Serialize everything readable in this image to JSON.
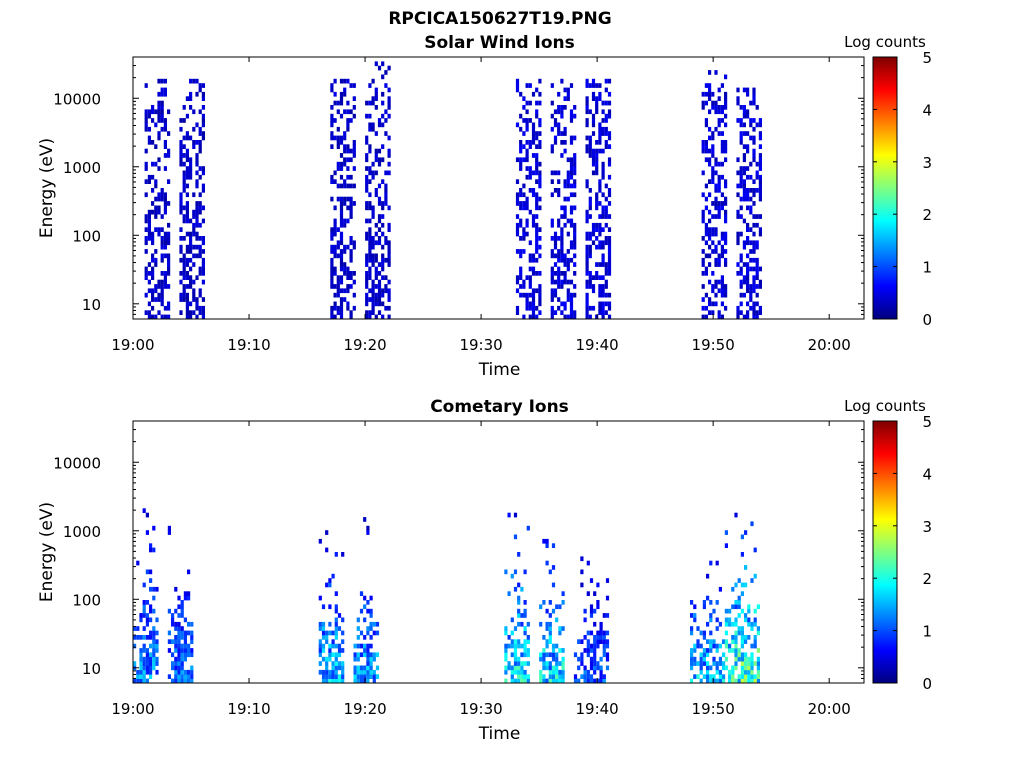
{
  "figure_title": "RPCICA150627T19.PNG",
  "colormap_stops": [
    "#00007f",
    "#0000ff",
    "#007fff",
    "#00ffff",
    "#7fff7f",
    "#ffff00",
    "#ff7f00",
    "#ff0000",
    "#7f0000"
  ],
  "chart_data": [
    {
      "type": "heatmap",
      "title": "Solar Wind Ions",
      "xlabel": "Time",
      "ylabel": "Energy (eV)",
      "xlim": [
        "19:00",
        "20:03"
      ],
      "ylim": [
        6,
        40000
      ],
      "yscale": "log",
      "xticks": [
        "19:00",
        "19:10",
        "19:20",
        "19:30",
        "19:40",
        "19:50",
        "20:00"
      ],
      "yticks": [
        10,
        100,
        1000,
        10000
      ],
      "ytick_labels": [
        "10",
        "100",
        "1000",
        "10000"
      ],
      "colorbar": {
        "label": "Log counts",
        "range": [
          0,
          5
        ],
        "ticks": [
          "0",
          "1",
          "2",
          "3",
          "4",
          "5"
        ]
      },
      "grid": false,
      "bursts": [
        {
          "t_start": "19:01",
          "t_end": "19:03",
          "e_min": 6,
          "e_max": 20000,
          "log_counts_typical": 0.5
        },
        {
          "t_start": "19:04",
          "t_end": "19:06",
          "e_min": 6,
          "e_max": 20000,
          "log_counts_typical": 0.5
        },
        {
          "t_start": "19:17",
          "t_end": "19:19",
          "e_min": 6,
          "e_max": 20000,
          "log_counts_typical": 0.5
        },
        {
          "t_start": "19:20",
          "t_end": "19:22",
          "e_min": 6,
          "e_max": 35000,
          "log_counts_typical": 0.5
        },
        {
          "t_start": "19:33",
          "t_end": "19:35",
          "e_min": 6,
          "e_max": 20000,
          "log_counts_typical": 0.6
        },
        {
          "t_start": "19:36",
          "t_end": "19:38",
          "e_min": 6,
          "e_max": 20000,
          "log_counts_typical": 0.6
        },
        {
          "t_start": "19:39",
          "t_end": "19:41",
          "e_min": 6,
          "e_max": 20000,
          "log_counts_typical": 0.6
        },
        {
          "t_start": "19:49",
          "t_end": "19:51",
          "e_min": 6,
          "e_max": 25000,
          "log_counts_typical": 0.6
        },
        {
          "t_start": "19:52",
          "t_end": "19:54",
          "e_min": 6,
          "e_max": 15000,
          "log_counts_typical": 0.6
        }
      ]
    },
    {
      "type": "heatmap",
      "title": "Cometary Ions",
      "xlabel": "Time",
      "ylabel": "Energy (eV)",
      "xlim": [
        "19:00",
        "20:03"
      ],
      "ylim": [
        6,
        40000
      ],
      "yscale": "log",
      "xticks": [
        "19:00",
        "19:10",
        "19:20",
        "19:30",
        "19:40",
        "19:50",
        "20:00"
      ],
      "yticks": [
        10,
        100,
        1000,
        10000
      ],
      "ytick_labels": [
        "10",
        "100",
        "1000",
        "10000"
      ],
      "colorbar": {
        "label": "Log counts",
        "range": [
          0,
          5
        ],
        "ticks": [
          "0",
          "1",
          "2",
          "3",
          "4",
          "5"
        ]
      },
      "grid": false,
      "bursts": [
        {
          "t_start": "19:00",
          "t_end": "19:02",
          "e_min": 6,
          "e_max": 2000,
          "log_counts_typical": 1.5
        },
        {
          "t_start": "19:03",
          "t_end": "19:05",
          "e_min": 6,
          "e_max": 1500,
          "log_counts_typical": 1.3
        },
        {
          "t_start": "19:16",
          "t_end": "19:18",
          "e_min": 6,
          "e_max": 1200,
          "log_counts_typical": 1.8
        },
        {
          "t_start": "19:19",
          "t_end": "19:21",
          "e_min": 6,
          "e_max": 1500,
          "log_counts_typical": 1.6
        },
        {
          "t_start": "19:32",
          "t_end": "19:34",
          "e_min": 6,
          "e_max": 3000,
          "log_counts_typical": 2.0
        },
        {
          "t_start": "19:35",
          "t_end": "19:37",
          "e_min": 6,
          "e_max": 1500,
          "log_counts_typical": 2.0
        },
        {
          "t_start": "19:38",
          "t_end": "19:41",
          "e_min": 6,
          "e_max": 500,
          "log_counts_typical": 1.2
        },
        {
          "t_start": "19:48",
          "t_end": "19:51",
          "e_min": 6,
          "e_max": 500,
          "log_counts_typical": 1.8
        },
        {
          "t_start": "19:51",
          "t_end": "19:54",
          "e_min": 6,
          "e_max": 1800,
          "log_counts_typical": 2.5
        }
      ]
    }
  ]
}
